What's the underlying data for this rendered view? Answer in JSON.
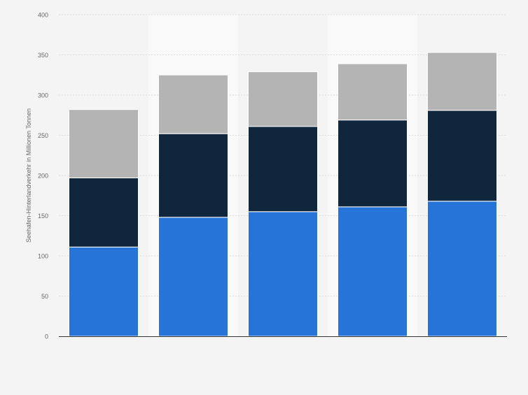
{
  "chart_data": {
    "type": "bar",
    "stacked": true,
    "categories": [
      "",
      "",
      "",
      "",
      ""
    ],
    "series": [
      {
        "values": [
          111,
          148,
          155,
          161,
          168
        ],
        "color": "#2774d9"
      },
      {
        "values": [
          86,
          104,
          106,
          108,
          113
        ],
        "color": "#10263d"
      },
      {
        "values": [
          85,
          73,
          68,
          70,
          72
        ],
        "color": "#b4b4b4"
      }
    ],
    "title": "",
    "xlabel": "",
    "ylabel": "Seehafen-Hinterlandverkehr in Millionen Tonnen",
    "ylim": [
      0,
      400
    ],
    "yticks": [
      0,
      50,
      100,
      150,
      200,
      250,
      300,
      350,
      400
    ],
    "grid": true,
    "legend": "none"
  }
}
